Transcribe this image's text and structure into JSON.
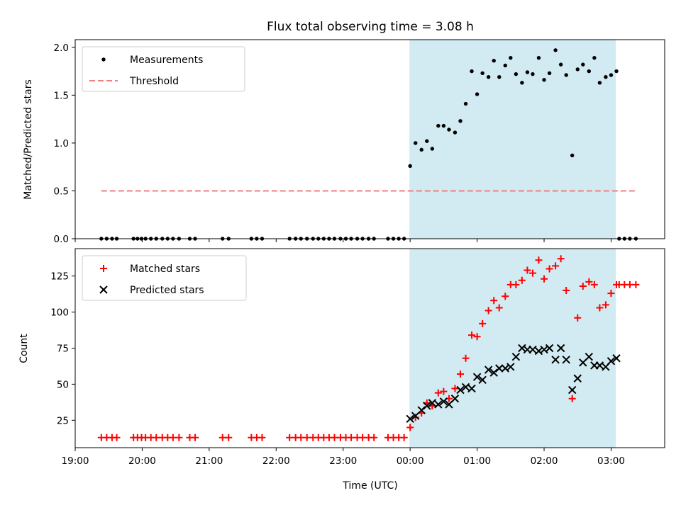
{
  "chart_data": {
    "title": "Flux total observing time = 3.08 h",
    "xlabel": "Time (UTC)",
    "x_ticks": [
      "19:00",
      "20:00",
      "21:00",
      "22:00",
      "23:00",
      "00:00",
      "01:00",
      "02:00",
      "03:00"
    ],
    "x_range_hours": [
      19.0,
      27.8
    ],
    "shaded_interval_hours": [
      23.99,
      27.07
    ],
    "shade_color": "#add8e6",
    "panels": [
      {
        "type": "scatter",
        "ylabel": "Matched/Predicted stars",
        "ylim": [
          0,
          2.08
        ],
        "y_ticks": [
          "0.0",
          "0.5",
          "1.0",
          "1.5",
          "2.0"
        ],
        "legend": {
          "position": "top-left",
          "entries": [
            "Measurements",
            "Threshold"
          ]
        },
        "series": [
          {
            "name": "Measurements",
            "color": "#000000",
            "marker": "dot",
            "points": [
              [
                19.39,
                0
              ],
              [
                19.47,
                0
              ],
              [
                19.55,
                0
              ],
              [
                19.62,
                0
              ],
              [
                19.87,
                0
              ],
              [
                19.93,
                0
              ],
              [
                19.99,
                0
              ],
              [
                20.05,
                0
              ],
              [
                20.13,
                0
              ],
              [
                20.21,
                0
              ],
              [
                20.3,
                0
              ],
              [
                20.38,
                0
              ],
              [
                20.46,
                0
              ],
              [
                20.55,
                0
              ],
              [
                20.71,
                0
              ],
              [
                20.79,
                0
              ],
              [
                21.2,
                0
              ],
              [
                21.29,
                0
              ],
              [
                21.63,
                0
              ],
              [
                21.71,
                0
              ],
              [
                21.79,
                0
              ],
              [
                22.2,
                0
              ],
              [
                22.29,
                0
              ],
              [
                22.37,
                0
              ],
              [
                22.46,
                0
              ],
              [
                22.55,
                0
              ],
              [
                22.63,
                0
              ],
              [
                22.71,
                0
              ],
              [
                22.79,
                0
              ],
              [
                22.87,
                0
              ],
              [
                22.96,
                0
              ],
              [
                23.04,
                0
              ],
              [
                23.12,
                0
              ],
              [
                23.21,
                0
              ],
              [
                23.29,
                0
              ],
              [
                23.38,
                0
              ],
              [
                23.46,
                0
              ],
              [
                23.67,
                0
              ],
              [
                23.75,
                0
              ],
              [
                23.83,
                0
              ],
              [
                23.91,
                0
              ],
              [
                24.0,
                0.76
              ],
              [
                24.08,
                1.0
              ],
              [
                24.17,
                0.93
              ],
              [
                24.25,
                1.02
              ],
              [
                24.33,
                0.94
              ],
              [
                24.42,
                1.18
              ],
              [
                24.5,
                1.18
              ],
              [
                24.58,
                1.14
              ],
              [
                24.67,
                1.11
              ],
              [
                24.75,
                1.23
              ],
              [
                24.83,
                1.41
              ],
              [
                24.92,
                1.75
              ],
              [
                25.0,
                1.51
              ],
              [
                25.08,
                1.73
              ],
              [
                25.17,
                1.69
              ],
              [
                25.25,
                1.86
              ],
              [
                25.33,
                1.69
              ],
              [
                25.42,
                1.81
              ],
              [
                25.5,
                1.89
              ],
              [
                25.58,
                1.72
              ],
              [
                25.67,
                1.63
              ],
              [
                25.75,
                1.74
              ],
              [
                25.83,
                1.72
              ],
              [
                25.92,
                1.89
              ],
              [
                26.0,
                1.66
              ],
              [
                26.08,
                1.73
              ],
              [
                26.17,
                1.97
              ],
              [
                26.25,
                1.82
              ],
              [
                26.33,
                1.71
              ],
              [
                26.42,
                0.87
              ],
              [
                26.5,
                1.77
              ],
              [
                26.58,
                1.82
              ],
              [
                26.67,
                1.75
              ],
              [
                26.75,
                1.89
              ],
              [
                26.83,
                1.63
              ],
              [
                26.92,
                1.69
              ],
              [
                27.0,
                1.71
              ],
              [
                27.08,
                1.75
              ],
              [
                27.12,
                0
              ],
              [
                27.2,
                0
              ],
              [
                27.28,
                0
              ],
              [
                27.37,
                0
              ]
            ]
          },
          {
            "name": "Threshold",
            "color": "#f08080",
            "style": "dashed",
            "points": [
              [
                19.39,
                0.5
              ],
              [
                27.37,
                0.5
              ]
            ]
          }
        ]
      },
      {
        "type": "scatter",
        "ylabel": "Count",
        "ylim": [
          6,
          144
        ],
        "y_ticks": [
          "25",
          "50",
          "75",
          "100",
          "125"
        ],
        "y_tick_values": [
          25,
          50,
          75,
          100,
          125
        ],
        "legend": {
          "position": "top-left",
          "entries": [
            "Matched stars",
            "Predicted stars"
          ]
        },
        "series": [
          {
            "name": "Matched stars",
            "color": "#ff0000",
            "marker": "plus",
            "points": [
              [
                19.39,
                13
              ],
              [
                19.47,
                13
              ],
              [
                19.55,
                13
              ],
              [
                19.62,
                13
              ],
              [
                19.87,
                13
              ],
              [
                19.93,
                13
              ],
              [
                19.99,
                13
              ],
              [
                20.05,
                13
              ],
              [
                20.13,
                13
              ],
              [
                20.21,
                13
              ],
              [
                20.3,
                13
              ],
              [
                20.38,
                13
              ],
              [
                20.46,
                13
              ],
              [
                20.55,
                13
              ],
              [
                20.71,
                13
              ],
              [
                20.79,
                13
              ],
              [
                21.2,
                13
              ],
              [
                21.29,
                13
              ],
              [
                21.63,
                13
              ],
              [
                21.71,
                13
              ],
              [
                21.79,
                13
              ],
              [
                22.2,
                13
              ],
              [
                22.29,
                13
              ],
              [
                22.37,
                13
              ],
              [
                22.46,
                13
              ],
              [
                22.55,
                13
              ],
              [
                22.63,
                13
              ],
              [
                22.71,
                13
              ],
              [
                22.79,
                13
              ],
              [
                22.87,
                13
              ],
              [
                22.96,
                13
              ],
              [
                23.04,
                13
              ],
              [
                23.12,
                13
              ],
              [
                23.21,
                13
              ],
              [
                23.29,
                13
              ],
              [
                23.38,
                13
              ],
              [
                23.46,
                13
              ],
              [
                23.67,
                13
              ],
              [
                23.75,
                13
              ],
              [
                23.83,
                13
              ],
              [
                23.91,
                13
              ],
              [
                24.0,
                20
              ],
              [
                24.08,
                27
              ],
              [
                24.17,
                30
              ],
              [
                24.25,
                37
              ],
              [
                24.33,
                35
              ],
              [
                24.42,
                44
              ],
              [
                24.5,
                45
              ],
              [
                24.58,
                40
              ],
              [
                24.67,
                47
              ],
              [
                24.75,
                57
              ],
              [
                24.83,
                68
              ],
              [
                24.92,
                84
              ],
              [
                25.0,
                83
              ],
              [
                25.08,
                92
              ],
              [
                25.17,
                101
              ],
              [
                25.25,
                108
              ],
              [
                25.33,
                103
              ],
              [
                25.42,
                111
              ],
              [
                25.5,
                119
              ],
              [
                25.58,
                119
              ],
              [
                25.67,
                122
              ],
              [
                25.75,
                129
              ],
              [
                25.83,
                127
              ],
              [
                25.92,
                136
              ],
              [
                26.0,
                123
              ],
              [
                26.08,
                130
              ],
              [
                26.17,
                132
              ],
              [
                26.25,
                137
              ],
              [
                26.33,
                115
              ],
              [
                26.42,
                40
              ],
              [
                26.5,
                96
              ],
              [
                26.58,
                118
              ],
              [
                26.67,
                121
              ],
              [
                26.75,
                119
              ],
              [
                26.83,
                103
              ],
              [
                26.92,
                105
              ],
              [
                27.0,
                113
              ],
              [
                27.08,
                119
              ],
              [
                27.12,
                119
              ],
              [
                27.2,
                119
              ],
              [
                27.28,
                119
              ],
              [
                27.37,
                119
              ]
            ]
          },
          {
            "name": "Predicted stars",
            "color": "#000000",
            "marker": "x",
            "points": [
              [
                24.0,
                26
              ],
              [
                24.08,
                28
              ],
              [
                24.17,
                32
              ],
              [
                24.25,
                35
              ],
              [
                24.33,
                37
              ],
              [
                24.42,
                36
              ],
              [
                24.5,
                38
              ],
              [
                24.58,
                36
              ],
              [
                24.67,
                40
              ],
              [
                24.75,
                46
              ],
              [
                24.83,
                48
              ],
              [
                24.92,
                47
              ],
              [
                25.0,
                55
              ],
              [
                25.08,
                53
              ],
              [
                25.17,
                60
              ],
              [
                25.25,
                58
              ],
              [
                25.33,
                61
              ],
              [
                25.42,
                61
              ],
              [
                25.5,
                62
              ],
              [
                25.58,
                69
              ],
              [
                25.67,
                75
              ],
              [
                25.75,
                74
              ],
              [
                25.83,
                74
              ],
              [
                25.92,
                73
              ],
              [
                26.0,
                74
              ],
              [
                26.08,
                75
              ],
              [
                26.17,
                67
              ],
              [
                26.25,
                75
              ],
              [
                26.33,
                67
              ],
              [
                26.42,
                46
              ],
              [
                26.5,
                54
              ],
              [
                26.58,
                65
              ],
              [
                26.67,
                69
              ],
              [
                26.75,
                63
              ],
              [
                26.83,
                63
              ],
              [
                26.92,
                62
              ],
              [
                27.0,
                66
              ],
              [
                27.08,
                68
              ]
            ]
          }
        ]
      }
    ]
  }
}
